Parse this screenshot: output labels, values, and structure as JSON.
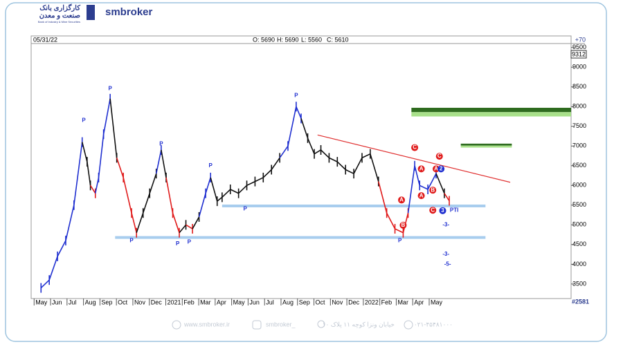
{
  "header": {
    "brand": "smbroker",
    "logo_line1": "کارگزاری بانک",
    "logo_line2": "صنعت و معدن",
    "logo_line3": "Bank of Industry & Mine Securities"
  },
  "footer": {
    "website": "www.smbroker.ir",
    "instagram": "smbroker_",
    "address": "خیابان ونزا کوچه ۱۱ پلاک ۱۰",
    "phone": "۰۲۱-۴۵۴۸۱۰۰۰"
  },
  "chart_data": {
    "type": "price",
    "date": "05/31/22",
    "open": "O: 5690",
    "high": "H: 5690",
    "low": "L: 5560",
    "close": "C: 5610",
    "change": "+70",
    "last_tag": "9312",
    "volume_tag": "#2581",
    "xlim": [
      -0.6,
      32.2
    ],
    "ylim": [
      3130,
      9600
    ],
    "xticks": [
      {
        "value": 0,
        "label": "May"
      },
      {
        "value": 1,
        "label": "Jun"
      },
      {
        "value": 2,
        "label": "Jul"
      },
      {
        "value": 3,
        "label": "Aug"
      },
      {
        "value": 4,
        "label": "Sep"
      },
      {
        "value": 5,
        "label": "Oct"
      },
      {
        "value": 6,
        "label": "Nov"
      },
      {
        "value": 7,
        "label": "Dec"
      },
      {
        "value": 8,
        "label": "2021"
      },
      {
        "value": 9,
        "label": "Feb"
      },
      {
        "value": 10,
        "label": "Mar"
      },
      {
        "value": 11,
        "label": "Apr"
      },
      {
        "value": 12,
        "label": "May"
      },
      {
        "value": 13,
        "label": "Jun"
      },
      {
        "value": 14,
        "label": "Jul"
      },
      {
        "value": 15,
        "label": "Aug"
      },
      {
        "value": 16,
        "label": "Sep"
      },
      {
        "value": 17,
        "label": "Oct"
      },
      {
        "value": 18,
        "label": "Nov"
      },
      {
        "value": 19,
        "label": "Dec"
      },
      {
        "value": 20,
        "label": "2022"
      },
      {
        "value": 21,
        "label": "Feb"
      },
      {
        "value": 22,
        "label": "Mar"
      },
      {
        "value": 23,
        "label": "Apr"
      },
      {
        "value": 24,
        "label": "May"
      }
    ],
    "yticks": [
      3500,
      4000,
      4500,
      5000,
      5500,
      6000,
      6500,
      7000,
      7500,
      8000,
      8500,
      9000,
      9500
    ],
    "x": [
      0,
      0.5,
      1,
      1.5,
      2,
      2.5,
      2.8,
      3,
      3.3,
      3.5,
      3.8,
      4.2,
      4.6,
      5,
      5.5,
      5.8,
      6.2,
      6.6,
      7,
      7.3,
      7.6,
      8,
      8.4,
      8.8,
      9.2,
      9.6,
      10,
      10.3,
      10.7,
      11,
      11.5,
      12,
      12.5,
      13,
      13.5,
      14,
      14.5,
      15,
      15.5,
      15.8,
      16.2,
      16.6,
      17,
      17.5,
      18,
      18.5,
      19,
      19.5,
      20,
      20.5,
      21,
      21.5,
      22,
      22.3,
      22.7,
      23,
      23.5,
      24,
      24.5,
      24.8
    ],
    "values": [
      3400,
      3600,
      4200,
      4600,
      5500,
      7100,
      6600,
      6000,
      5800,
      6200,
      7300,
      8200,
      6700,
      6200,
      5300,
      4800,
      5300,
      5800,
      6300,
      6900,
      6200,
      5300,
      4800,
      5000,
      4900,
      5200,
      5800,
      6200,
      5600,
      5700,
      5900,
      5800,
      6000,
      6100,
      6200,
      6400,
      6700,
      7000,
      8000,
      7700,
      7200,
      6800,
      6900,
      6700,
      6600,
      6400,
      6300,
      6700,
      6800,
      6100,
      5300,
      4900,
      4800,
      5300,
      6500,
      6000,
      5900,
      6300,
      5800,
      5610
    ],
    "colors": [
      "#1f2fd0",
      "#1f2fd0",
      "#1f2fd0",
      "#1f2fd0",
      "#1f2fd0",
      "#1f2fd0",
      "#111111",
      "#111111",
      "#e01b1b",
      "#1f2fd0",
      "#1f2fd0",
      "#1f2fd0",
      "#111111",
      "#e01b1b",
      "#e01b1b",
      "#e01b1b",
      "#111111",
      "#111111",
      "#111111",
      "#1f2fd0",
      "#111111",
      "#e01b1b",
      "#e01b1b",
      "#111111",
      "#e01b1b",
      "#111111",
      "#1f2fd0",
      "#1f2fd0",
      "#111111",
      "#111111",
      "#111111",
      "#111111",
      "#111111",
      "#111111",
      "#111111",
      "#111111",
      "#111111",
      "#1f2fd0",
      "#1f2fd0",
      "#1f2fd0",
      "#111111",
      "#111111",
      "#111111",
      "#111111",
      "#111111",
      "#111111",
      "#111111",
      "#111111",
      "#111111",
      "#111111",
      "#e01b1b",
      "#e01b1b",
      "#e01b1b",
      "#e01b1b",
      "#1f2fd0",
      "#1f2fd0",
      "#1f2fd0",
      "#1f2fd0",
      "#111111",
      "#e01b1b"
    ],
    "support_lines": [
      {
        "value": 5480,
        "x": [
          11,
          27
        ]
      },
      {
        "value": 4680,
        "x": [
          4.5,
          27
        ]
      }
    ],
    "support_color": "#a8cdee",
    "trendline": {
      "x": [
        16.8,
        28.5
      ],
      "y": [
        7280,
        6080
      ],
      "color": "#e03030"
    },
    "zones": [
      {
        "x": [
          22.5,
          32.2
        ],
        "y": [
          7750,
          7970
        ]
      },
      {
        "x": [
          25.5,
          28.6
        ],
        "y": [
          6960,
          7060
        ]
      }
    ],
    "zone_colors": [
      "#2e6b1f",
      "#a8e08a"
    ],
    "annotations": [
      {
        "text": "P",
        "x": 2.6,
        "y": 7650,
        "style": "text"
      },
      {
        "text": "P",
        "x": 4.2,
        "y": 8450,
        "style": "text"
      },
      {
        "text": "P",
        "x": 7.3,
        "y": 7050,
        "style": "text"
      },
      {
        "text": "P",
        "x": 5.5,
        "y": 4600,
        "style": "text"
      },
      {
        "text": "P",
        "x": 8.3,
        "y": 4520,
        "style": "text"
      },
      {
        "text": "P",
        "x": 9.0,
        "y": 4560,
        "style": "text"
      },
      {
        "text": "P",
        "x": 10.3,
        "y": 6500,
        "style": "text"
      },
      {
        "text": "P",
        "x": 12.4,
        "y": 5400,
        "style": "text"
      },
      {
        "text": "P",
        "x": 15.5,
        "y": 8280,
        "style": "text"
      },
      {
        "text": "P",
        "x": 21.8,
        "y": 4600,
        "style": "text"
      },
      {
        "text": "A",
        "x": 21.9,
        "y": 5630,
        "style": "red"
      },
      {
        "text": "B",
        "x": 22.0,
        "y": 4990,
        "style": "red"
      },
      {
        "text": "C",
        "x": 22.7,
        "y": 6960,
        "style": "red"
      },
      {
        "text": "A",
        "x": 23.1,
        "y": 6420,
        "style": "red"
      },
      {
        "text": "A",
        "x": 23.1,
        "y": 5740,
        "style": "red"
      },
      {
        "text": "B",
        "x": 23.8,
        "y": 5880,
        "style": "red"
      },
      {
        "text": "C",
        "x": 24.2,
        "y": 6740,
        "style": "red"
      },
      {
        "text": "A",
        "x": 24.0,
        "y": 6420,
        "style": "red"
      },
      {
        "text": "C",
        "x": 23.8,
        "y": 5370,
        "style": "red"
      },
      {
        "text": "2",
        "x": 24.3,
        "y": 6420,
        "style": "blue"
      },
      {
        "text": "3",
        "x": 24.4,
        "y": 5360,
        "style": "blue"
      },
      {
        "text": "PTI",
        "x": 25.1,
        "y": 5370,
        "style": "label"
      },
      {
        "text": "-3-",
        "x": 24.6,
        "y": 5000,
        "style": "label"
      },
      {
        "text": "-3-",
        "x": 24.6,
        "y": 4250,
        "style": "label"
      },
      {
        "text": "-5-",
        "x": 24.7,
        "y": 4000,
        "style": "label"
      }
    ]
  }
}
